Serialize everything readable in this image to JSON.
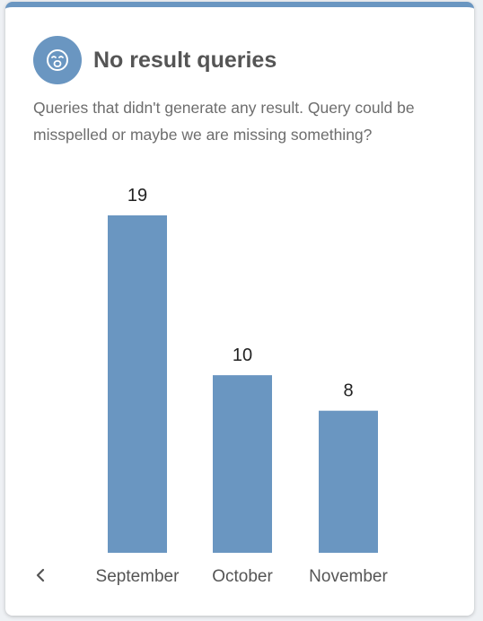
{
  "card": {
    "title": "No result queries",
    "description": "Queries that didn't generate any result. Query could be misspelled or maybe we are missing something?",
    "icon": "sad-face-icon",
    "accent_color": "#6a96c1"
  },
  "navigation": {
    "prev_icon": "chevron-left-icon"
  },
  "chart_data": {
    "type": "bar",
    "categories": [
      "September",
      "October",
      "November"
    ],
    "values": [
      19,
      10,
      8
    ],
    "ylim": [
      0,
      19
    ],
    "grid": false,
    "bar_color": "#6a96c1",
    "data_labels": true
  }
}
